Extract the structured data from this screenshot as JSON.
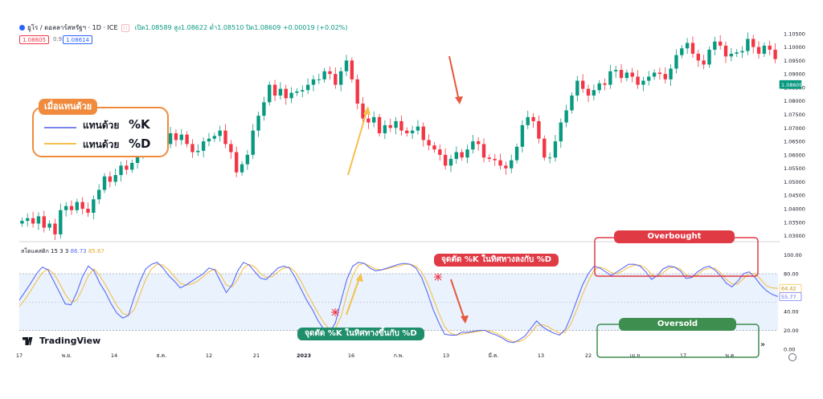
{
  "header": {
    "symbol": "ยูโร / ดอลลาร์สหรัฐฯ · 1D · ICE",
    "open": "เปิด1.08589",
    "high": "สูง1.08622",
    "low": "ต่ำ1.08510",
    "close": "ปิด1.08609",
    "change": "+0.00019 (+0.02%)",
    "bid": "1.08605",
    "spread": "0.9",
    "ask": "1.08614"
  },
  "legend": {
    "title": "เมื่อแทนด้วย",
    "k_label": "แทนด้วย",
    "k_key": "%K",
    "d_label": "แทนด้วย",
    "d_key": "%D"
  },
  "annotations": {
    "overbought": "Overbought",
    "oversold": "Oversold",
    "bear_cross": "จุดตัด %K ในทิศทางลงกับ %D",
    "bull_cross": "จุดตัด %K ในทิศทางขึ้นกับ %D"
  },
  "oscillator_label": {
    "name": "สโตแคสติก 15 3 3",
    "k_value": "86.73",
    "d_value": "85.67"
  },
  "logo": "TradingView",
  "current_price_tag": "1.08609",
  "k_value_tag": "55.77",
  "d_value_tag": "64.42",
  "colors": {
    "up": "#089981",
    "down": "#f23645",
    "k_line": "#5b6af5",
    "d_line": "#f5c04b",
    "orange": "#f08b3e",
    "band_fill": "#e9f2fd"
  },
  "chart_data": [
    {
      "type": "candlestick",
      "title": "ยูโร / ดอลลาร์สหรัฐฯ · 1D · ICE",
      "x_tick_labels": [
        "17",
        "พ.ย.",
        "14",
        "ธ.ค.",
        "12",
        "21",
        "2023",
        "16",
        "ก.พ.",
        "13",
        "มี.ค.",
        "13",
        "22",
        "เม.ย.",
        "17",
        "พ.ค."
      ],
      "y_tick_labels": [
        "1.10500",
        "1.10000",
        "1.09500",
        "1.09000",
        "1.08500",
        "1.08000",
        "1.07500",
        "1.07000",
        "1.06500",
        "1.06000",
        "1.05500",
        "1.05000",
        "1.04500",
        "1.04000",
        "1.03500",
        "1.03000"
      ],
      "ylim": [
        1.0278,
        1.1085
      ],
      "grid": false,
      "visible_window": "mid-Nov 2022 to early May 2023",
      "close_approx": [
        1.0355,
        1.0365,
        1.0345,
        1.0372,
        1.033,
        1.0345,
        1.0305,
        1.0395,
        1.041,
        1.0395,
        1.0425,
        1.04,
        1.0385,
        1.0435,
        1.047,
        1.052,
        1.05,
        1.0525,
        1.056,
        1.0545,
        1.057,
        1.06,
        1.0675,
        1.064,
        1.0625,
        1.0675,
        1.064,
        1.068,
        1.0655,
        1.0675,
        1.064,
        1.061,
        1.0615,
        1.065,
        1.066,
        1.067,
        1.069,
        1.064,
        1.061,
        1.0535,
        1.0565,
        1.06,
        1.069,
        1.0745,
        1.0795,
        1.086,
        1.082,
        1.0845,
        1.081,
        1.083,
        1.0835,
        1.084,
        1.086,
        1.088,
        1.088,
        1.091,
        1.09,
        1.086,
        1.091,
        1.095,
        1.088,
        1.079,
        1.0735,
        1.072,
        1.074,
        1.068,
        1.071,
        1.07,
        1.0725,
        1.069,
        1.068,
        1.069,
        1.0705,
        1.0655,
        1.0635,
        1.062,
        1.06,
        1.056,
        1.0585,
        1.061,
        1.059,
        1.062,
        1.065,
        1.064,
        1.059,
        1.0585,
        1.058,
        1.056,
        1.055,
        1.058,
        1.063,
        1.071,
        1.074,
        1.0725,
        1.066,
        1.059,
        1.059,
        1.065,
        1.072,
        1.0765,
        1.082,
        1.0875,
        1.0845,
        1.082,
        1.084,
        1.0865,
        1.086,
        1.091,
        1.0915,
        1.0885,
        1.0905,
        1.089,
        1.086,
        1.0875,
        1.089,
        1.0905,
        1.09,
        1.088,
        1.092,
        1.097,
        1.0995,
        1.1015,
        1.0975,
        1.095,
        1.0935,
        1.099,
        1.102,
        1.1005,
        1.0965,
        1.0975,
        1.098,
        1.0985,
        1.103,
        1.1,
        1.0975,
        1.1005,
        1.099,
        1.0955
      ],
      "annotation_arrows": [
        {
          "direction": "up",
          "color": "#f5c04b",
          "from_price": 1.052,
          "to_price": 1.078
        },
        {
          "direction": "down",
          "color": "#e8573e",
          "from_price": 1.094,
          "to_price": 1.082
        }
      ]
    },
    {
      "type": "line",
      "title": "สโตแคสติก 15 3 3",
      "ylim": [
        0,
        108
      ],
      "y_tick_labels": [
        "100.00",
        "80.00",
        "60.00",
        "40.00",
        "20.00",
        "0.00"
      ],
      "band": [
        20,
        80
      ],
      "series": [
        {
          "name": "%K",
          "color": "#5b6af5",
          "values": [
            52,
            61,
            70,
            80,
            87,
            84,
            72,
            60,
            48,
            47,
            60,
            77,
            88,
            83,
            70,
            60,
            48,
            38,
            33,
            36,
            55,
            72,
            85,
            90,
            92,
            86,
            78,
            72,
            65,
            68,
            72,
            76,
            80,
            86,
            84,
            72,
            60,
            68,
            83,
            92,
            89,
            82,
            75,
            74,
            80,
            86,
            88,
            86,
            76,
            64,
            52,
            42,
            30,
            21,
            18,
            28,
            52,
            74,
            88,
            92,
            91,
            86,
            83,
            84,
            86,
            88,
            90,
            91,
            90,
            86,
            76,
            60,
            42,
            28,
            16,
            15,
            15,
            18,
            18,
            19,
            20,
            20,
            17,
            15,
            12,
            8,
            7,
            10,
            14,
            22,
            30,
            24,
            20,
            17,
            15,
            21,
            35,
            52,
            68,
            80,
            88,
            86,
            82,
            78,
            82,
            86,
            90,
            90,
            88,
            82,
            74,
            78,
            85,
            88,
            87,
            83,
            75,
            76,
            82,
            86,
            88,
            84,
            78,
            70,
            66,
            72,
            80,
            82,
            76,
            68,
            62,
            58,
            55.77
          ]
        },
        {
          "name": "%D",
          "color": "#f5c04b",
          "values": [
            45,
            53,
            62,
            72,
            81,
            85,
            80,
            70,
            58,
            50,
            52,
            64,
            78,
            85,
            78,
            68,
            57,
            46,
            38,
            36,
            42,
            58,
            74,
            85,
            90,
            89,
            84,
            77,
            70,
            68,
            69,
            72,
            77,
            82,
            85,
            79,
            68,
            66,
            74,
            86,
            90,
            87,
            80,
            76,
            77,
            82,
            86,
            87,
            82,
            72,
            60,
            49,
            38,
            28,
            21,
            22,
            35,
            58,
            78,
            89,
            91,
            88,
            85,
            84,
            85,
            87,
            88,
            90,
            90,
            88,
            82,
            70,
            54,
            38,
            24,
            17,
            15,
            16,
            17,
            18,
            19,
            20,
            19,
            17,
            14,
            10,
            8,
            8,
            11,
            17,
            25,
            26,
            24,
            20,
            17,
            18,
            27,
            42,
            58,
            72,
            84,
            87,
            85,
            81,
            80,
            83,
            87,
            89,
            89,
            86,
            79,
            77,
            81,
            86,
            87,
            85,
            79,
            76,
            79,
            84,
            86,
            86,
            81,
            74,
            69,
            69,
            75,
            80,
            80,
            74,
            67,
            65,
            64.42
          ]
        }
      ]
    }
  ]
}
